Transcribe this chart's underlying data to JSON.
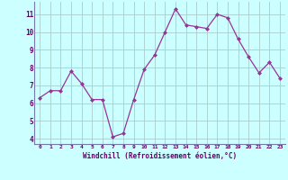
{
  "x": [
    0,
    1,
    2,
    3,
    4,
    5,
    6,
    7,
    8,
    9,
    10,
    11,
    12,
    13,
    14,
    15,
    16,
    17,
    18,
    19,
    20,
    21,
    22,
    23
  ],
  "y": [
    6.3,
    6.7,
    6.7,
    7.8,
    7.1,
    6.2,
    6.2,
    4.1,
    4.3,
    6.2,
    7.9,
    8.7,
    10.0,
    11.3,
    10.4,
    10.3,
    10.2,
    11.0,
    10.8,
    9.6,
    8.6,
    7.7,
    8.3,
    7.4
  ],
  "line_color": "#993399",
  "marker": "D",
  "marker_size": 2.0,
  "bg_color": "#ccffff",
  "grid_color": "#aacccc",
  "xlabel": "Windchill (Refroidissement éolien,°C)",
  "ylabel_ticks": [
    4,
    5,
    6,
    7,
    8,
    9,
    10,
    11
  ],
  "xtick_labels": [
    "0",
    "1",
    "2",
    "3",
    "4",
    "5",
    "6",
    "7",
    "8",
    "9",
    "10",
    "11",
    "12",
    "13",
    "14",
    "15",
    "16",
    "17",
    "18",
    "19",
    "20",
    "21",
    "22",
    "23"
  ],
  "ylim": [
    3.7,
    11.7
  ],
  "xlim": [
    -0.5,
    23.5
  ],
  "spine_color": "#7777aa",
  "label_color": "#660066",
  "tick_color": "#660066"
}
